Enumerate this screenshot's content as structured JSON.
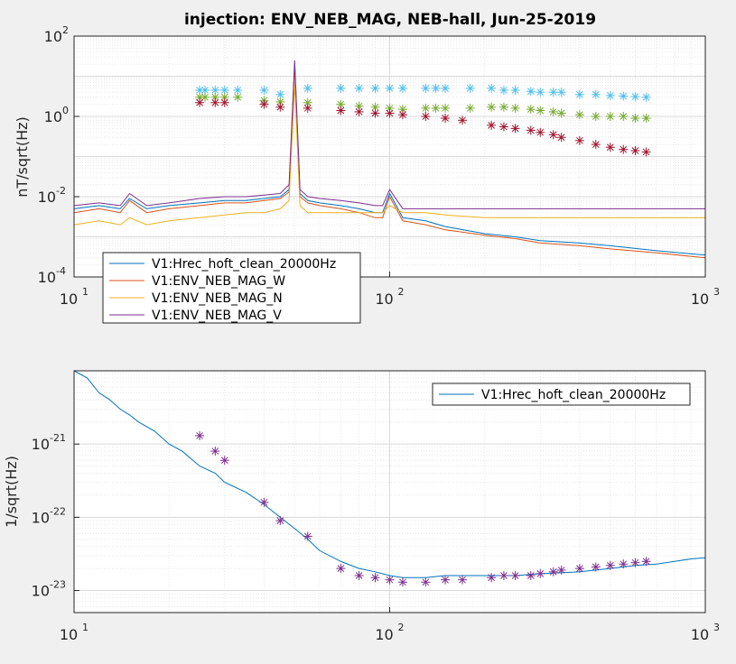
{
  "figure": {
    "title": "injection: ENV_NEB_MAG, NEB-hall, Jun-25-2019",
    "colors": {
      "hrec": "#0072bd",
      "mag_w": "#d95319",
      "mag_n": "#edb120",
      "mag_v": "#7e2f8e",
      "star_cyan": "#4dbeee",
      "star_green": "#77ac30",
      "star_darkred": "#a2142f",
      "star_purple": "#7e2f8e"
    }
  },
  "chart_data": [
    {
      "type": "line",
      "title": "injection: ENV_NEB_MAG, NEB-hall, Jun-25-2019",
      "xlabel": "",
      "ylabel": "nT/sqrt(Hz)",
      "xscale": "log",
      "yscale": "log",
      "xlim": [
        10,
        1000
      ],
      "ylim": [
        0.0001,
        100
      ],
      "grid": true,
      "legend_position": "bottom-left",
      "x_ticks": [
        {
          "base": "10",
          "exp": "1"
        },
        {
          "base": "10",
          "exp": "2"
        },
        {
          "base": "10",
          "exp": "3"
        }
      ],
      "y_ticks": [
        {
          "base": "10",
          "exp": "-4"
        },
        {
          "base": "10",
          "exp": "-2"
        },
        {
          "base": "10",
          "exp": "0"
        },
        {
          "base": "10",
          "exp": "2"
        }
      ],
      "series": [
        {
          "name": "V1:Hrec_hoft_clean_20000Hz",
          "color": "#0072bd",
          "x": [
            10,
            12,
            14,
            15,
            17,
            20,
            25,
            30,
            35,
            40,
            45,
            48,
            50,
            52,
            55,
            60,
            70,
            80,
            90,
            95,
            100,
            110,
            130,
            150,
            200,
            250,
            300,
            400,
            500,
            700,
            1000
          ],
          "y": [
            0.005,
            0.006,
            0.005,
            0.009,
            0.005,
            0.006,
            0.007,
            0.008,
            0.008,
            0.009,
            0.01,
            0.015,
            20,
            0.012,
            0.008,
            0.007,
            0.006,
            0.005,
            0.004,
            0.004,
            0.012,
            0.003,
            0.0025,
            0.0018,
            0.0012,
            0.001,
            0.0008,
            0.0007,
            0.0006,
            0.00045,
            0.00035
          ]
        },
        {
          "name": "V1:ENV_NEB_MAG_W",
          "color": "#d95319",
          "x": [
            10,
            12,
            14,
            15,
            17,
            20,
            25,
            30,
            35,
            40,
            45,
            48,
            50,
            52,
            55,
            60,
            70,
            80,
            90,
            95,
            100,
            110,
            130,
            150,
            200,
            250,
            300,
            400,
            500,
            700,
            1000
          ],
          "y": [
            0.004,
            0.005,
            0.004,
            0.008,
            0.004,
            0.005,
            0.006,
            0.007,
            0.007,
            0.008,
            0.009,
            0.013,
            18,
            0.01,
            0.007,
            0.006,
            0.005,
            0.004,
            0.003,
            0.003,
            0.01,
            0.0025,
            0.002,
            0.0015,
            0.0011,
            0.0009,
            0.0007,
            0.0006,
            0.0005,
            0.0004,
            0.0003
          ]
        },
        {
          "name": "V1:ENV_NEB_MAG_N",
          "color": "#edb120",
          "x": [
            10,
            12,
            14,
            15,
            17,
            20,
            25,
            30,
            35,
            40,
            45,
            48,
            50,
            52,
            55,
            60,
            70,
            80,
            90,
            95,
            100,
            110,
            130,
            150,
            200,
            250,
            300,
            400,
            500,
            700,
            1000
          ],
          "y": [
            0.002,
            0.0025,
            0.002,
            0.003,
            0.002,
            0.0025,
            0.003,
            0.0035,
            0.004,
            0.004,
            0.005,
            0.008,
            6,
            0.006,
            0.004,
            0.004,
            0.004,
            0.004,
            0.004,
            0.004,
            0.006,
            0.004,
            0.004,
            0.0035,
            0.003,
            0.003,
            0.003,
            0.003,
            0.003,
            0.003,
            0.003
          ]
        },
        {
          "name": "V1:ENV_NEB_MAG_V",
          "color": "#7e2f8e",
          "x": [
            10,
            12,
            14,
            15,
            17,
            20,
            25,
            30,
            35,
            40,
            45,
            48,
            50,
            52,
            55,
            60,
            70,
            80,
            90,
            95,
            100,
            110,
            130,
            150,
            200,
            250,
            300,
            400,
            500,
            700,
            1000
          ],
          "y": [
            0.006,
            0.007,
            0.006,
            0.012,
            0.006,
            0.007,
            0.009,
            0.01,
            0.01,
            0.011,
            0.012,
            0.02,
            25,
            0.015,
            0.01,
            0.009,
            0.008,
            0.007,
            0.006,
            0.006,
            0.015,
            0.005,
            0.005,
            0.005,
            0.005,
            0.005,
            0.005,
            0.005,
            0.005,
            0.005,
            0.005
          ]
        }
      ],
      "markers": [
        {
          "color": "#4dbeee",
          "x": [
            25,
            26,
            28,
            30,
            33,
            40,
            45,
            55,
            70,
            80,
            90,
            100,
            110,
            130,
            140,
            150,
            180,
            210,
            230,
            250,
            280,
            300,
            330,
            350,
            400,
            450,
            500,
            550,
            600,
            650
          ],
          "y": [
            4.5,
            4.5,
            4.5,
            4.5,
            4.5,
            4.5,
            3.5,
            5,
            5,
            5,
            5,
            5,
            5,
            5,
            5,
            5,
            5,
            5,
            4.5,
            4.5,
            4.2,
            4,
            4,
            4,
            3.5,
            3.5,
            3.3,
            3.2,
            3.1,
            3
          ]
        },
        {
          "color": "#77ac30",
          "x": [
            25,
            26,
            28,
            30,
            33,
            40,
            45,
            55,
            70,
            80,
            90,
            100,
            110,
            130,
            140,
            150,
            180,
            210,
            230,
            250,
            280,
            300,
            330,
            350,
            400,
            450,
            500,
            550,
            600,
            650
          ],
          "y": [
            3,
            3,
            3,
            3,
            3,
            2.5,
            2.3,
            2.2,
            2,
            1.8,
            1.7,
            1.6,
            1.5,
            1.6,
            1.6,
            1.6,
            1.6,
            1.7,
            1.7,
            1.6,
            1.5,
            1.4,
            1.3,
            1.2,
            1.1,
            1,
            1,
            1,
            0.9,
            0.9
          ]
        },
        {
          "color": "#a2142f",
          "x": [
            25,
            28,
            30,
            40,
            45,
            55,
            70,
            80,
            90,
            100,
            110,
            130,
            150,
            170,
            210,
            230,
            250,
            280,
            300,
            330,
            350,
            400,
            450,
            500,
            550,
            600,
            650
          ],
          "y": [
            2.2,
            2.2,
            2.2,
            2,
            1.7,
            1.6,
            1.4,
            1.3,
            1.2,
            1.2,
            1.1,
            1,
            0.9,
            0.8,
            0.6,
            0.55,
            0.5,
            0.45,
            0.4,
            0.35,
            0.3,
            0.25,
            0.2,
            0.17,
            0.15,
            0.14,
            0.13
          ]
        }
      ]
    },
    {
      "type": "line",
      "title": "",
      "xlabel": "",
      "ylabel": "1/sqrt(Hz)",
      "xscale": "log",
      "yscale": "log",
      "xlim": [
        10,
        1000
      ],
      "ylim": [
        5e-24,
        1e-20
      ],
      "grid": true,
      "legend_position": "top-right",
      "x_ticks": [
        {
          "base": "10",
          "exp": "1"
        },
        {
          "base": "10",
          "exp": "2"
        },
        {
          "base": "10",
          "exp": "3"
        }
      ],
      "y_ticks": [
        {
          "base": "10",
          "exp": "-23"
        },
        {
          "base": "10",
          "exp": "-22"
        },
        {
          "base": "10",
          "exp": "-21"
        }
      ],
      "series": [
        {
          "name": "V1:Hrec_hoft_clean_20000Hz",
          "color": "#0072bd",
          "x": [
            10,
            11,
            12,
            13,
            14,
            15,
            16,
            18,
            20,
            22,
            25,
            28,
            30,
            35,
            40,
            45,
            50,
            55,
            60,
            70,
            80,
            90,
            100,
            110,
            120,
            130,
            150,
            180,
            200,
            250,
            300,
            400,
            450,
            500,
            600,
            700,
            800,
            900,
            1000
          ],
          "y": [
            1e-20,
            8e-21,
            5e-21,
            4e-21,
            3e-21,
            2.5e-21,
            2e-21,
            1.5e-21,
            1e-21,
            8e-22,
            5e-22,
            4e-22,
            3e-22,
            2.2e-22,
            1.5e-22,
            1e-22,
            7e-23,
            5e-23,
            3.5e-23,
            2.5e-23,
            2e-23,
            1.8e-23,
            1.6e-23,
            1.5e-23,
            1.5e-23,
            1.5e-23,
            1.6e-23,
            1.6e-23,
            1.6e-23,
            1.6e-23,
            1.7e-23,
            1.8e-23,
            1.9e-23,
            2e-23,
            2.2e-23,
            2.3e-23,
            2.5e-23,
            2.7e-23,
            2.8e-23
          ]
        }
      ],
      "markers": [
        {
          "color": "#7e2f8e",
          "x": [
            25,
            28,
            30,
            40,
            45,
            55,
            70,
            80,
            90,
            100,
            110,
            130,
            150,
            170,
            210,
            230,
            250,
            280,
            300,
            330,
            350,
            400,
            450,
            500,
            550,
            600,
            650
          ],
          "y": [
            1.3e-21,
            8e-22,
            6e-22,
            1.6e-22,
            9e-23,
            5.5e-23,
            2e-23,
            1.6e-23,
            1.5e-23,
            1.4e-23,
            1.3e-23,
            1.3e-23,
            1.4e-23,
            1.4e-23,
            1.5e-23,
            1.6e-23,
            1.6e-23,
            1.6e-23,
            1.7e-23,
            1.8e-23,
            1.9e-23,
            2e-23,
            2.1e-23,
            2.2e-23,
            2.3e-23,
            2.4e-23,
            2.5e-23
          ]
        }
      ]
    }
  ]
}
